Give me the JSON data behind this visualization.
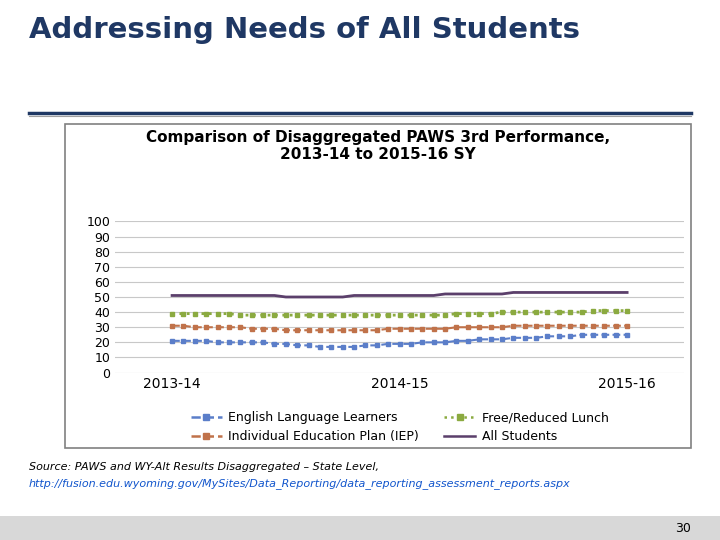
{
  "title_main": "Addressing Needs of All Students",
  "chart_title": "Comparison of Disaggregated PAWS 3rd Performance,\n2013-14 to 2015-16 SY",
  "series_order": [
    "All Students",
    "Free/Reduced Lunch",
    "Individual Education Plan (IEP)",
    "English Language Learners"
  ],
  "series": {
    "English Language Learners": {
      "color": "#5B7EC9",
      "linestyle": "--",
      "marker": "s",
      "markersize": 3.5,
      "linewidth": 1.5,
      "data_x": [
        0,
        0.05,
        0.1,
        0.15,
        0.2,
        0.25,
        0.3,
        0.35,
        0.4,
        0.45,
        0.5,
        0.55,
        0.6,
        0.65,
        0.7,
        0.75,
        0.8,
        0.85,
        0.9,
        0.95,
        1.0,
        1.05,
        1.1,
        1.15,
        1.2,
        1.25,
        1.3,
        1.35,
        1.4,
        1.45,
        1.5,
        1.55,
        1.6,
        1.65,
        1.7,
        1.75,
        1.8,
        1.85,
        1.9,
        1.95,
        2.0
      ],
      "data_y": [
        21,
        21,
        21,
        21,
        20,
        20,
        20,
        20,
        20,
        19,
        19,
        18,
        18,
        17,
        17,
        17,
        17,
        18,
        18,
        19,
        19,
        19,
        20,
        20,
        20,
        21,
        21,
        22,
        22,
        22,
        23,
        23,
        23,
        24,
        24,
        24,
        25,
        25,
        25,
        25,
        25
      ]
    },
    "Individual Education Plan (IEP)": {
      "color": "#C0724A",
      "linestyle": "--",
      "marker": "s",
      "markersize": 3.5,
      "linewidth": 1.5,
      "data_x": [
        0,
        0.05,
        0.1,
        0.15,
        0.2,
        0.25,
        0.3,
        0.35,
        0.4,
        0.45,
        0.5,
        0.55,
        0.6,
        0.65,
        0.7,
        0.75,
        0.8,
        0.85,
        0.9,
        0.95,
        1.0,
        1.05,
        1.1,
        1.15,
        1.2,
        1.25,
        1.3,
        1.35,
        1.4,
        1.45,
        1.5,
        1.55,
        1.6,
        1.65,
        1.7,
        1.75,
        1.8,
        1.85,
        1.9,
        1.95,
        2.0
      ],
      "data_y": [
        31,
        31,
        30,
        30,
        30,
        30,
        30,
        29,
        29,
        29,
        28,
        28,
        28,
        28,
        28,
        28,
        28,
        28,
        28,
        29,
        29,
        29,
        29,
        29,
        29,
        30,
        30,
        30,
        30,
        30,
        31,
        31,
        31,
        31,
        31,
        31,
        31,
        31,
        31,
        31,
        31
      ]
    },
    "Free/Reduced Lunch": {
      "color": "#8BAA40",
      "linestyle": ":",
      "marker": "s",
      "markersize": 3.5,
      "linewidth": 2.0,
      "data_x": [
        0,
        0.05,
        0.1,
        0.15,
        0.2,
        0.25,
        0.3,
        0.35,
        0.4,
        0.45,
        0.5,
        0.55,
        0.6,
        0.65,
        0.7,
        0.75,
        0.8,
        0.85,
        0.9,
        0.95,
        1.0,
        1.05,
        1.1,
        1.15,
        1.2,
        1.25,
        1.3,
        1.35,
        1.4,
        1.45,
        1.5,
        1.55,
        1.6,
        1.65,
        1.7,
        1.75,
        1.8,
        1.85,
        1.9,
        1.95,
        2.0
      ],
      "data_y": [
        39,
        39,
        39,
        39,
        39,
        39,
        38,
        38,
        38,
        38,
        38,
        38,
        38,
        38,
        38,
        38,
        38,
        38,
        38,
        38,
        38,
        38,
        38,
        38,
        38,
        39,
        39,
        39,
        39,
        40,
        40,
        40,
        40,
        40,
        40,
        40,
        40,
        41,
        41,
        41,
        41
      ]
    },
    "All Students": {
      "color": "#5B3F6B",
      "linestyle": "-",
      "marker": null,
      "markersize": 0,
      "linewidth": 2.0,
      "data_x": [
        0,
        0.05,
        0.1,
        0.15,
        0.2,
        0.25,
        0.3,
        0.35,
        0.4,
        0.45,
        0.5,
        0.55,
        0.6,
        0.65,
        0.7,
        0.75,
        0.8,
        0.85,
        0.9,
        0.95,
        1.0,
        1.05,
        1.1,
        1.15,
        1.2,
        1.25,
        1.3,
        1.35,
        1.4,
        1.45,
        1.5,
        1.55,
        1.6,
        1.65,
        1.7,
        1.75,
        1.8,
        1.85,
        1.9,
        1.95,
        2.0
      ],
      "data_y": [
        51,
        51,
        51,
        51,
        51,
        51,
        51,
        51,
        51,
        51,
        50,
        50,
        50,
        50,
        50,
        50,
        51,
        51,
        51,
        51,
        51,
        51,
        51,
        51,
        52,
        52,
        52,
        52,
        52,
        52,
        53,
        53,
        53,
        53,
        53,
        53,
        53,
        53,
        53,
        53,
        53
      ]
    }
  },
  "ylim": [
    0,
    100
  ],
  "yticks": [
    0,
    10,
    20,
    30,
    40,
    50,
    60,
    70,
    80,
    90,
    100
  ],
  "xlim": [
    -0.25,
    2.25
  ],
  "xtick_positions": [
    0,
    1,
    2
  ],
  "x_labels": [
    "2013-14",
    "2014-15",
    "2015-16"
  ],
  "bg_color": "#FFFFFF",
  "chart_bg": "#FFFFFF",
  "grid_color": "#C8C8C8",
  "box_border_color": "#808080",
  "title_color": "#1F3864",
  "chart_title_color": "#000000",
  "source_line1": "Source: PAWS and WY-Alt Results Disaggregated – State Level,",
  "source_line2": "http://fusion.edu.wyoming.gov/MySites/Data_Reporting/data_reporting_assessment_reports.aspx",
  "legend_items": [
    {
      "label": "English Language Learners",
      "color": "#5B7EC9",
      "linestyle": "--",
      "marker": "s"
    },
    {
      "label": "Individual Education Plan (IEP)",
      "color": "#C0724A",
      "linestyle": "--",
      "marker": "s"
    },
    {
      "label": "Free/Reduced Lunch",
      "color": "#8BAA40",
      "linestyle": ":",
      "marker": "s"
    },
    {
      "label": "All Students",
      "color": "#5B3F6B",
      "linestyle": "-",
      "marker": null
    }
  ]
}
